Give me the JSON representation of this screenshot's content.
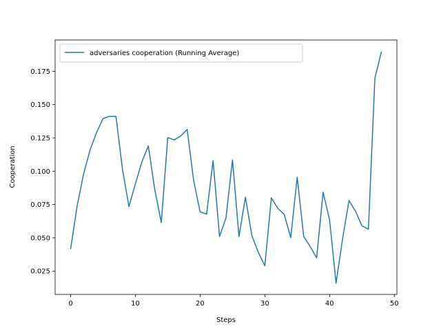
{
  "chart_data": {
    "type": "line",
    "title": "",
    "xlabel": "Steps",
    "ylabel": "Cooperation",
    "xlim": [
      -2.4,
      50.4
    ],
    "ylim": [
      0.0075,
      0.1985
    ],
    "xticks": [
      0,
      10,
      20,
      30,
      40,
      50
    ],
    "xtick_labels": [
      "0",
      "10",
      "20",
      "30",
      "40",
      "50"
    ],
    "yticks": [
      0.025,
      0.05,
      0.075,
      0.1,
      0.125,
      0.15,
      0.175
    ],
    "ytick_labels": [
      "0.025",
      "0.050",
      "0.075",
      "0.100",
      "0.125",
      "0.150",
      "0.175"
    ],
    "grid": false,
    "legend_position": "top-left",
    "series": [
      {
        "name": "adversaries cooperation (Running Average)",
        "color": "#1f77b4",
        "x": [
          0,
          1,
          2,
          3,
          4,
          5,
          6,
          7,
          8,
          9,
          10,
          11,
          12,
          13,
          14,
          15,
          16,
          17,
          18,
          19,
          20,
          21,
          22,
          23,
          24,
          25,
          26,
          27,
          28,
          29,
          30,
          31,
          32,
          33,
          34,
          35,
          36,
          37,
          38,
          39,
          40,
          41,
          42,
          43,
          44,
          45,
          46,
          47,
          48
        ],
        "y": [
          0.042,
          0.074,
          0.098,
          0.116,
          0.129,
          0.1395,
          0.1412,
          0.1412,
          0.1015,
          0.0735,
          0.0905,
          0.107,
          0.119,
          0.086,
          0.0615,
          0.1253,
          0.1235,
          0.1265,
          0.1313,
          0.093,
          0.0695,
          0.0678,
          0.108,
          0.051,
          0.065,
          0.1085,
          0.051,
          0.0805,
          0.0515,
          0.039,
          0.029,
          0.08,
          0.0722,
          0.0675,
          0.0502,
          0.0955,
          0.051,
          0.0435,
          0.035,
          0.0843,
          0.0635,
          0.016,
          0.049,
          0.078,
          0.07,
          0.059,
          0.0565,
          0.17,
          0.1895
        ]
      }
    ]
  }
}
